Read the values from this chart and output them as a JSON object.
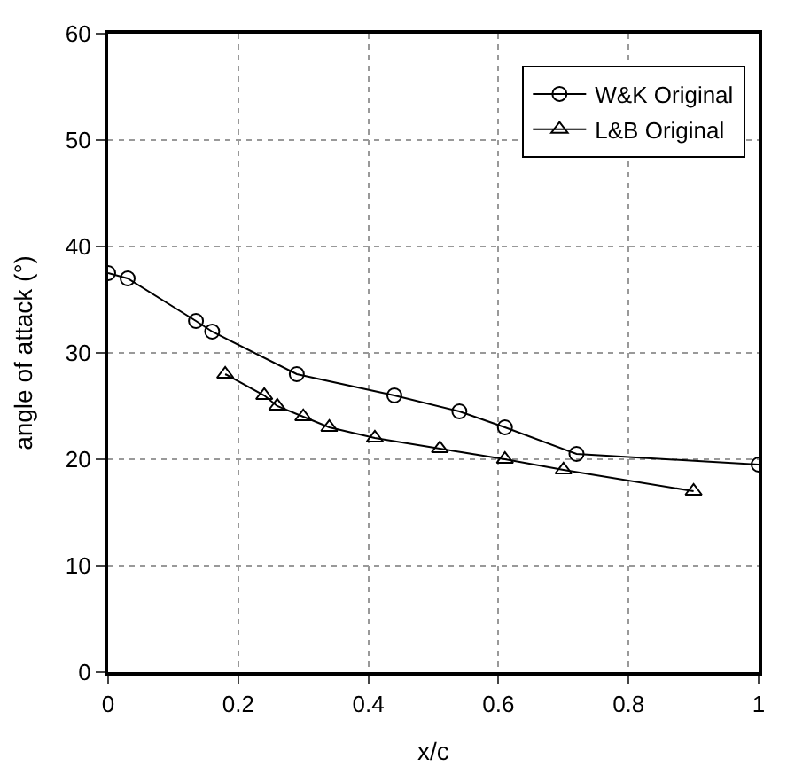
{
  "chart_data": {
    "type": "line",
    "xlabel": "x/c",
    "ylabel": "angle of attack (°)",
    "xlim": [
      0,
      1
    ],
    "xticks": [
      0,
      0.2,
      0.4,
      0.6,
      0.8,
      1
    ],
    "ylim": [
      0,
      60
    ],
    "yticks": [
      0,
      10,
      20,
      30,
      40,
      50,
      60
    ],
    "grid": true,
    "legend": "top right",
    "line_style": "solid",
    "series": [
      {
        "name": "W&K Original",
        "color": "#000000",
        "marker": "circle",
        "x": [
          0,
          0.03,
          0.135,
          0.16,
          0.29,
          0.44,
          0.54,
          0.61,
          0.72,
          1
        ],
        "values": [
          37.5,
          37,
          33,
          32,
          28,
          26,
          24.5,
          23,
          20.5,
          19.5
        ]
      },
      {
        "name": "L&B Original",
        "color": "#000000",
        "marker": "triangle",
        "x": [
          0.18,
          0.24,
          0.26,
          0.3,
          0.34,
          0.41,
          0.51,
          0.61,
          0.7,
          0.9
        ],
        "values": [
          28,
          26,
          25,
          24,
          23,
          22,
          21,
          20,
          19,
          17
        ]
      }
    ]
  }
}
